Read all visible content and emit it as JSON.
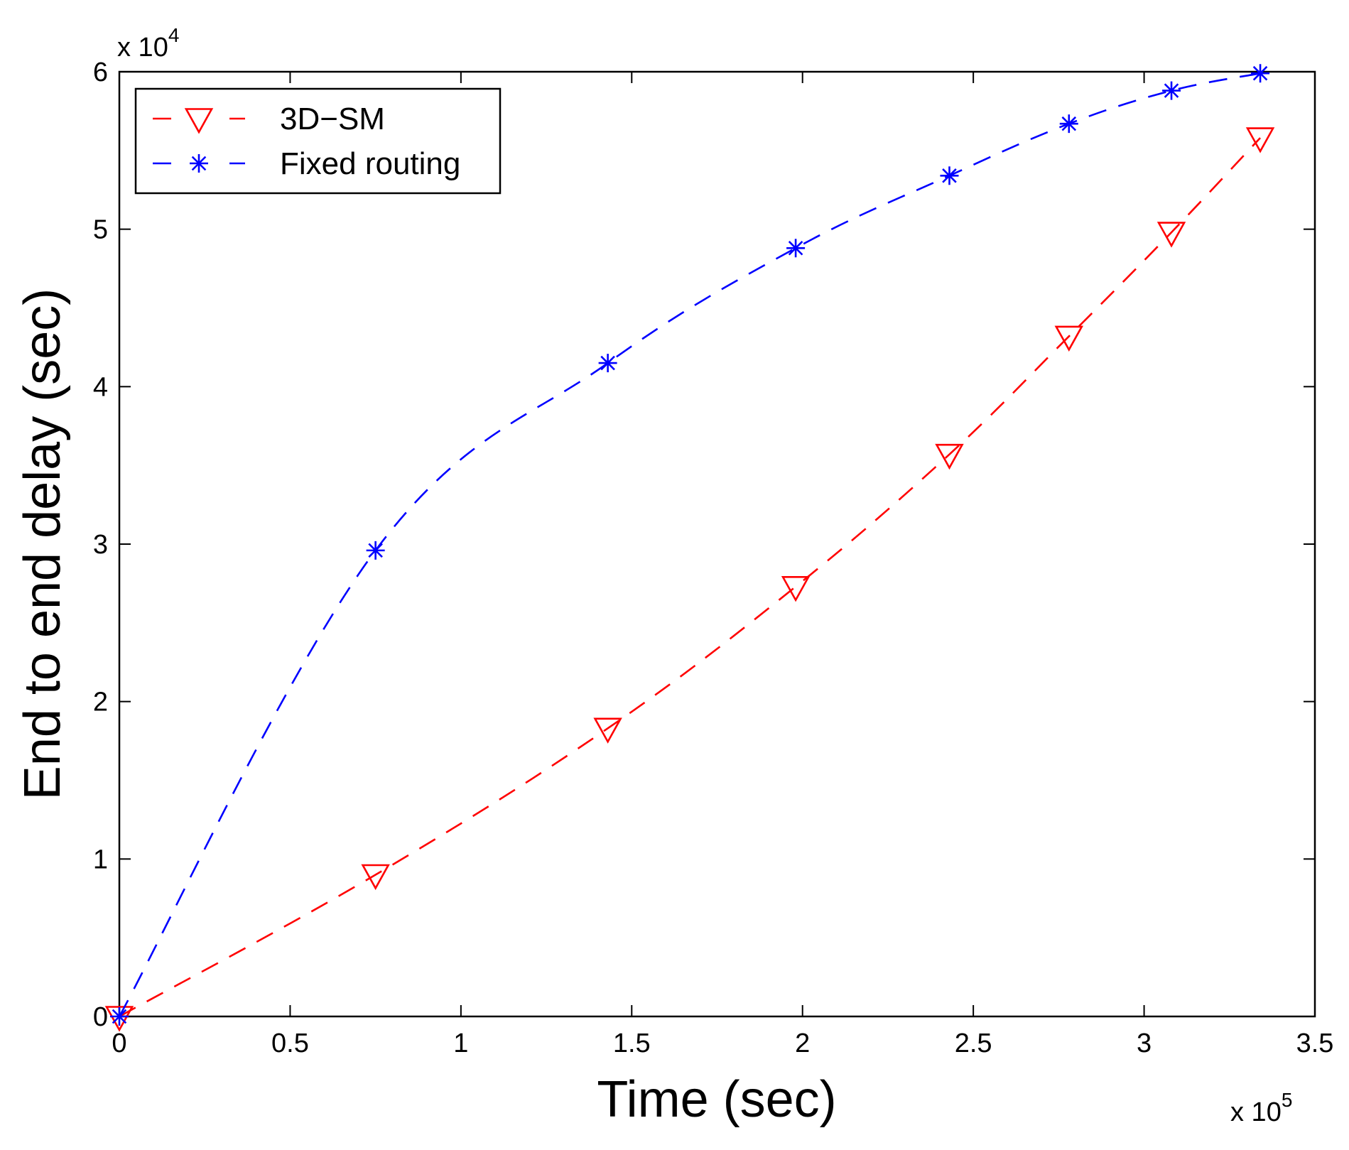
{
  "chart_data": {
    "type": "line",
    "title": "",
    "xlabel": "Time (sec)",
    "ylabel": "End to end delay (sec)",
    "x_multiplier": {
      "base": "x 10",
      "exp": "5"
    },
    "y_multiplier": {
      "base": "x 10",
      "exp": "4"
    },
    "xlim": [
      0,
      3.5
    ],
    "ylim": [
      0,
      6
    ],
    "xticks": [
      0,
      0.5,
      1,
      1.5,
      2,
      2.5,
      3,
      3.5
    ],
    "xtick_labels": [
      "0",
      "0.5",
      "1",
      "1.5",
      "2",
      "2.5",
      "3",
      "3.5"
    ],
    "yticks": [
      0,
      1,
      2,
      3,
      4,
      5,
      6
    ],
    "ytick_labels": [
      "0",
      "1",
      "2",
      "3",
      "4",
      "5",
      "6"
    ],
    "grid": false,
    "legend_position": "top-left",
    "series": [
      {
        "name": "3D−SM",
        "color": "#ff0000",
        "marker": "triangle-down",
        "line_style": "dashed",
        "x": [
          0,
          0.75,
          1.43,
          1.98,
          2.43,
          2.78,
          3.08,
          3.34
        ],
        "y": [
          0,
          0.9,
          1.83,
          2.73,
          3.57,
          4.32,
          4.98,
          5.58
        ]
      },
      {
        "name": "Fixed routing",
        "color": "#0000ff",
        "marker": "asterisk",
        "line_style": "dashed",
        "x": [
          0,
          0.75,
          1.43,
          1.98,
          2.43,
          2.78,
          3.08,
          3.34
        ],
        "y": [
          0,
          2.96,
          4.15,
          4.88,
          5.34,
          5.67,
          5.88,
          5.99
        ]
      }
    ]
  }
}
